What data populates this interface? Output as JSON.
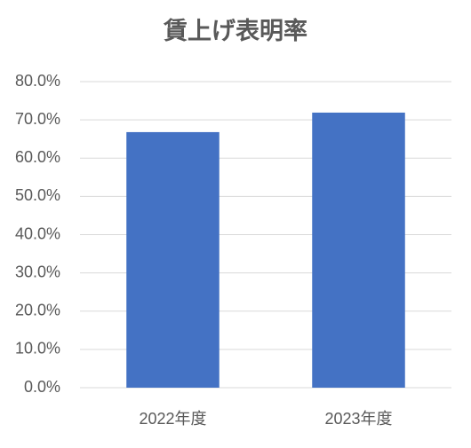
{
  "chart_data": {
    "type": "bar",
    "title": "賃上げ表明率",
    "categories": [
      "2022年度",
      "2023年度"
    ],
    "values": [
      66.8,
      71.9
    ],
    "color": "#4472c4",
    "ylim": [
      0,
      80
    ],
    "yticks": [
      {
        "value": 0,
        "label": "0.0%"
      },
      {
        "value": 10,
        "label": "10.0%"
      },
      {
        "value": 20,
        "label": "20.0%"
      },
      {
        "value": 30,
        "label": "30.0%"
      },
      {
        "value": 40,
        "label": "40.0%"
      },
      {
        "value": 50,
        "label": "50.0%"
      },
      {
        "value": 60,
        "label": "60.0%"
      },
      {
        "value": 70,
        "label": "70.0%"
      },
      {
        "value": 80,
        "label": "80.0%"
      }
    ],
    "grid": true
  }
}
